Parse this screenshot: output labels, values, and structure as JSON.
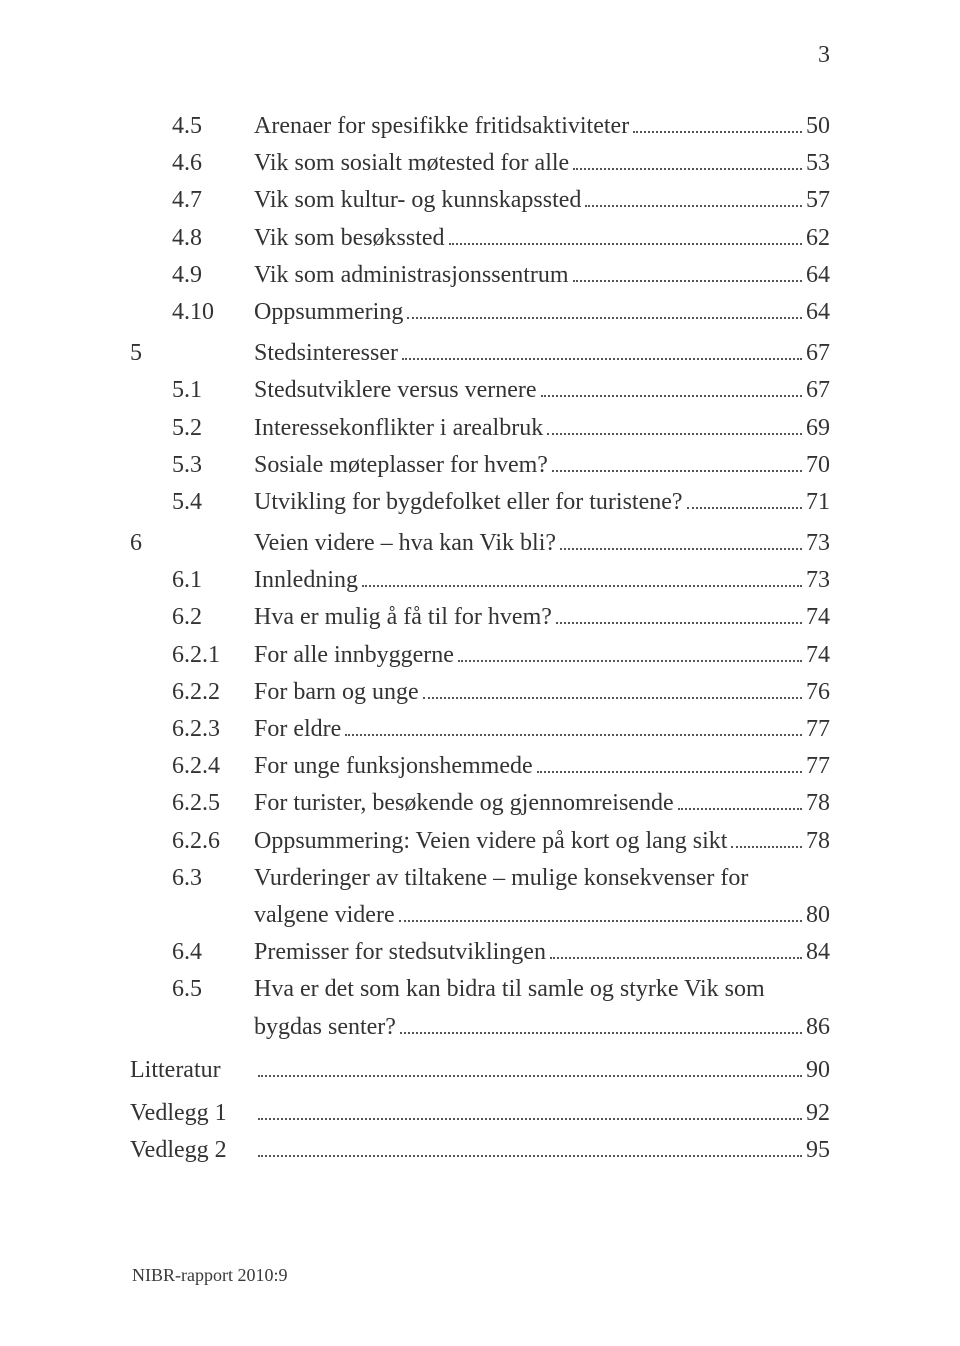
{
  "page_number": "3",
  "footer": "NIBR-rapport 2010:9",
  "colors": {
    "bg": "#ffffff",
    "text": "#333333",
    "leader": "#555555"
  },
  "rows": [
    {
      "chap": "",
      "sec": "4.5",
      "title": "Arenaer for spesifikke fritidsaktiviteter",
      "page": "50"
    },
    {
      "chap": "",
      "sec": "4.6",
      "title": "Vik som sosialt møtested for alle",
      "page": "53"
    },
    {
      "chap": "",
      "sec": "4.7",
      "title": "Vik som kultur- og kunnskapssted",
      "page": "57"
    },
    {
      "chap": "",
      "sec": "4.8",
      "title": "Vik som besøkssted",
      "page": "62"
    },
    {
      "chap": "",
      "sec": "4.9",
      "title": "Vik som administrasjonssentrum",
      "page": "64"
    },
    {
      "chap": "",
      "sec": "4.10",
      "title": "Oppsummering",
      "page": "64"
    },
    {
      "chap": "5",
      "sec": "",
      "title": "Stedsinteresser",
      "page": "67"
    },
    {
      "chap": "",
      "sec": "5.1",
      "title": "Stedsutviklere versus vernere",
      "page": "67"
    },
    {
      "chap": "",
      "sec": "5.2",
      "title": "Interessekonflikter i arealbruk",
      "page": "69"
    },
    {
      "chap": "",
      "sec": "5.3",
      "title": "Sosiale møteplasser for hvem?",
      "page": "70"
    },
    {
      "chap": "",
      "sec": "5.4",
      "title": "Utvikling for bygdefolket eller for turistene?",
      "page": "71"
    },
    {
      "chap": "6",
      "sec": "",
      "title": "Veien videre – hva kan Vik bli?",
      "page": "73"
    },
    {
      "chap": "",
      "sec": "6.1",
      "title": "Innledning",
      "page": "73"
    },
    {
      "chap": "",
      "sec": "6.2",
      "title": "Hva er mulig å få til for hvem?",
      "page": "74"
    },
    {
      "chap": "",
      "sec": "6.2.1",
      "title": "For alle innbyggerne",
      "page": "74"
    },
    {
      "chap": "",
      "sec": "6.2.2",
      "title": "For barn og unge",
      "page": "76"
    },
    {
      "chap": "",
      "sec": "6.2.3",
      "title": "For eldre",
      "page": "77"
    },
    {
      "chap": "",
      "sec": "6.2.4",
      "title": "For unge funksjonshemmede",
      "page": "77"
    },
    {
      "chap": "",
      "sec": "6.2.5",
      "title": "For turister, besøkende og gjennomreisende",
      "page": "78"
    },
    {
      "chap": "",
      "sec": "6.2.6",
      "title": "Oppsummering: Veien videre på kort og lang sikt",
      "page": "78"
    },
    {
      "chap": "",
      "sec": "6.3",
      "title": "Vurderinger av tiltakene – mulige konsekvenser for",
      "page": ""
    },
    {
      "chap": "",
      "sec": "",
      "title": "valgene videre",
      "page": "80",
      "cont": true
    },
    {
      "chap": "",
      "sec": "6.4",
      "title": "Premisser for stedsutviklingen",
      "page": "84"
    },
    {
      "chap": "",
      "sec": "6.5",
      "title": "Hva er det som kan bidra til samle og styrke Vik som",
      "page": ""
    },
    {
      "chap": "",
      "sec": "",
      "title": "bygdas senter?",
      "page": "86",
      "cont": true
    },
    {
      "chap": "Litteratur",
      "sec": "",
      "title": "",
      "page": "90",
      "flat": true
    },
    {
      "chap": "Vedlegg 1",
      "sec": "",
      "title": "",
      "page": "92",
      "flat": true
    },
    {
      "chap": "Vedlegg 2",
      "sec": "",
      "title": "",
      "page": "95",
      "flat": true,
      "tight": true
    }
  ]
}
